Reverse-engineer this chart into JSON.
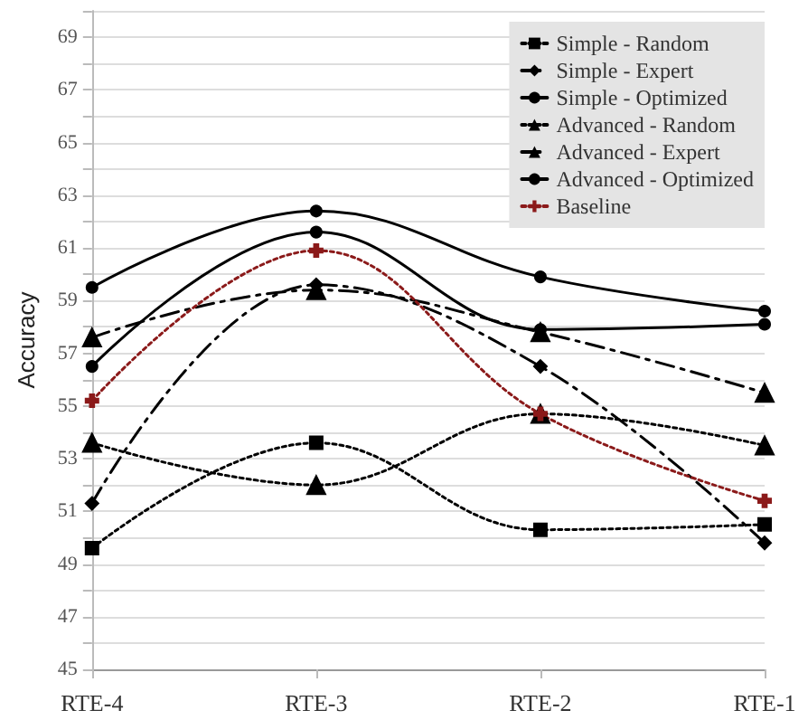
{
  "chart_data": {
    "type": "line",
    "ylabel": "Accuracy",
    "categories": [
      "RTE-4",
      "RTE-3",
      "RTE-2",
      "RTE-1"
    ],
    "series": [
      {
        "name": "Simple - Random",
        "color": "#000000",
        "marker": "square",
        "line_style": "dotted",
        "values": [
          49.6,
          53.6,
          50.3,
          50.5
        ]
      },
      {
        "name": "Simple - Expert",
        "color": "#000000",
        "marker": "diamond",
        "line_style": "dashed",
        "values": [
          51.3,
          59.6,
          56.5,
          49.8
        ]
      },
      {
        "name": "Simple - Optimized",
        "color": "#000000",
        "marker": "circle",
        "line_style": "solid",
        "values": [
          56.5,
          61.6,
          57.9,
          58.1
        ]
      },
      {
        "name": "Advanced - Random",
        "color": "#000000",
        "marker": "triangle",
        "line_style": "dotted",
        "values": [
          53.6,
          52.0,
          54.7,
          53.5
        ]
      },
      {
        "name": "Advanced - Expert",
        "color": "#000000",
        "marker": "triangle",
        "line_style": "dashed",
        "values": [
          57.6,
          59.4,
          57.8,
          55.5
        ]
      },
      {
        "name": "Advanced - Optimized",
        "color": "#000000",
        "marker": "circle",
        "line_style": "solid",
        "values": [
          59.5,
          62.4,
          59.9,
          58.6
        ]
      },
      {
        "name": "Baseline",
        "color": "#8b1a1a",
        "marker": "cross",
        "line_style": "dotted",
        "values": [
          55.2,
          60.9,
          54.7,
          51.4
        ]
      }
    ],
    "ylim": [
      45,
      70
    ],
    "yticks": [
      45,
      {
        "value": 46,
        "label": null
      },
      47,
      {
        "value": 48,
        "label": null
      },
      49,
      {
        "value": 50,
        "label": null
      },
      51,
      {
        "value": 52,
        "label": null
      },
      53,
      {
        "value": 54,
        "label": null
      },
      55,
      {
        "value": 56,
        "label": null
      },
      57,
      {
        "value": 58,
        "label": null
      },
      59,
      {
        "value": 60,
        "label": null
      },
      61,
      {
        "value": 62,
        "label": null
      },
      63,
      {
        "value": 64,
        "label": null
      },
      65,
      {
        "value": 66,
        "label": null
      },
      67,
      {
        "value": 68,
        "label": null
      },
      69,
      {
        "value": 70,
        "label": null
      }
    ],
    "grid": "y",
    "legend": "top right"
  }
}
